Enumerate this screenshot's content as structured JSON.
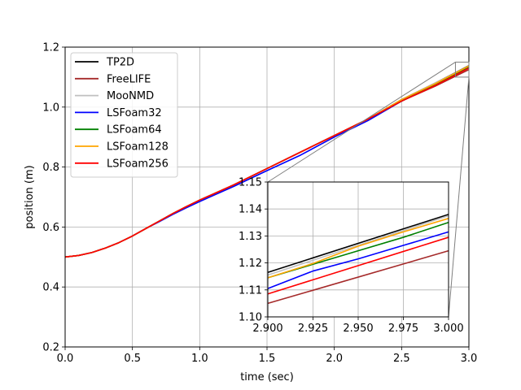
{
  "chart_data": [
    {
      "type": "line",
      "panel": "main",
      "xlabel": "time (sec)",
      "ylabel": "position (m)",
      "xlim": [
        0.0,
        3.0
      ],
      "ylim": [
        0.2,
        1.2
      ],
      "xticks": [
        0.0,
        0.5,
        1.0,
        1.5,
        2.0,
        2.5,
        3.0
      ],
      "xtick_labels": [
        "0.0",
        "0.5",
        "1.0",
        "1.5",
        "2.0",
        "2.5",
        "3.0"
      ],
      "yticks": [
        0.2,
        0.4,
        0.6,
        0.8,
        1.0,
        1.2
      ],
      "ytick_labels": [
        "0.2",
        "0.4",
        "0.6",
        "0.8",
        "1.0",
        "1.2"
      ],
      "grid": true,
      "legend_position": "upper-left",
      "series": [
        {
          "name": "TP2D",
          "color": "#000000",
          "x": [
            0.0,
            0.1,
            0.2,
            0.3,
            0.4,
            0.5,
            0.6,
            0.7,
            0.8,
            0.9,
            1.0,
            1.25,
            1.5,
            1.75,
            2.0,
            2.25,
            2.5,
            2.75,
            3.0
          ],
          "y": [
            0.5,
            0.505,
            0.515,
            0.53,
            0.548,
            0.57,
            0.595,
            0.62,
            0.645,
            0.668,
            0.69,
            0.74,
            0.795,
            0.85,
            0.905,
            0.96,
            1.025,
            1.08,
            1.138
          ]
        },
        {
          "name": "FreeLIFE",
          "color": "#a52a2a",
          "x": [
            0.0,
            0.1,
            0.2,
            0.3,
            0.4,
            0.5,
            0.6,
            0.7,
            0.8,
            0.9,
            1.0,
            1.25,
            1.5,
            1.75,
            2.0,
            2.25,
            2.5,
            2.75,
            3.0
          ],
          "y": [
            0.5,
            0.505,
            0.515,
            0.53,
            0.548,
            0.57,
            0.595,
            0.62,
            0.645,
            0.668,
            0.69,
            0.74,
            0.795,
            0.85,
            0.905,
            0.96,
            1.02,
            1.07,
            1.125
          ]
        },
        {
          "name": "MooNMD",
          "color": "#c0c0c0",
          "x": [
            0.0,
            0.1,
            0.2,
            0.3,
            0.4,
            0.5,
            0.6,
            0.7,
            0.8,
            0.9,
            1.0,
            1.25,
            1.5,
            1.75,
            2.0,
            2.25,
            2.5,
            2.75,
            3.0
          ],
          "y": [
            0.5,
            0.505,
            0.515,
            0.53,
            0.548,
            0.57,
            0.595,
            0.62,
            0.645,
            0.668,
            0.69,
            0.74,
            0.795,
            0.85,
            0.905,
            0.96,
            1.025,
            1.08,
            1.137
          ]
        },
        {
          "name": "LSFoam32",
          "color": "#0000ff",
          "x": [
            0.0,
            0.1,
            0.2,
            0.3,
            0.4,
            0.5,
            0.6,
            0.7,
            0.8,
            0.9,
            1.0,
            1.25,
            1.5,
            1.75,
            2.0,
            2.25,
            2.5,
            2.75,
            3.0
          ],
          "y": [
            0.5,
            0.505,
            0.515,
            0.53,
            0.548,
            0.57,
            0.595,
            0.618,
            0.642,
            0.664,
            0.685,
            0.735,
            0.788,
            0.84,
            0.9,
            0.955,
            1.02,
            1.075,
            1.131
          ]
        },
        {
          "name": "LSFoam64",
          "color": "#008000",
          "x": [
            0.0,
            0.1,
            0.2,
            0.3,
            0.4,
            0.5,
            0.6,
            0.7,
            0.8,
            0.9,
            1.0,
            1.25,
            1.5,
            1.75,
            2.0,
            2.25,
            2.5,
            2.75,
            3.0
          ],
          "y": [
            0.5,
            0.505,
            0.515,
            0.53,
            0.548,
            0.57,
            0.595,
            0.62,
            0.645,
            0.668,
            0.69,
            0.74,
            0.795,
            0.85,
            0.905,
            0.96,
            1.02,
            1.075,
            1.135
          ]
        },
        {
          "name": "LSFoam128",
          "color": "#ffa500",
          "x": [
            0.0,
            0.1,
            0.2,
            0.3,
            0.4,
            0.5,
            0.6,
            0.7,
            0.8,
            0.9,
            1.0,
            1.25,
            1.5,
            1.75,
            2.0,
            2.25,
            2.5,
            2.75,
            3.0
          ],
          "y": [
            0.5,
            0.505,
            0.515,
            0.53,
            0.548,
            0.57,
            0.595,
            0.62,
            0.645,
            0.668,
            0.69,
            0.74,
            0.795,
            0.85,
            0.905,
            0.96,
            1.025,
            1.078,
            1.137
          ]
        },
        {
          "name": "LSFoam256",
          "color": "#ff0000",
          "x": [
            0.0,
            0.1,
            0.2,
            0.3,
            0.4,
            0.5,
            0.6,
            0.7,
            0.8,
            0.9,
            1.0,
            1.25,
            1.5,
            1.75,
            2.0,
            2.25,
            2.5,
            2.75,
            3.0
          ],
          "y": [
            0.5,
            0.505,
            0.515,
            0.53,
            0.548,
            0.57,
            0.595,
            0.62,
            0.645,
            0.668,
            0.69,
            0.74,
            0.795,
            0.85,
            0.905,
            0.96,
            1.02,
            1.072,
            1.13
          ]
        }
      ]
    },
    {
      "type": "line",
      "panel": "inset",
      "xlim": [
        2.9,
        3.0
      ],
      "ylim": [
        1.1,
        1.15
      ],
      "xticks": [
        2.9,
        2.925,
        2.95,
        2.975,
        3.0
      ],
      "xtick_labels": [
        "2.900",
        "2.925",
        "2.950",
        "2.975",
        "3.000"
      ],
      "yticks": [
        1.1,
        1.11,
        1.12,
        1.13,
        1.14,
        1.15
      ],
      "ytick_labels": [
        "1.10",
        "1.11",
        "1.12",
        "1.13",
        "1.14",
        "1.15"
      ],
      "grid": true,
      "series": [
        {
          "name": "TP2D",
          "color": "#000000",
          "x": [
            2.9,
            3.0
          ],
          "y": [
            1.1165,
            1.138
          ]
        },
        {
          "name": "FreeLIFE",
          "color": "#a52a2a",
          "x": [
            2.9,
            3.0
          ],
          "y": [
            1.105,
            1.1245
          ]
        },
        {
          "name": "MooNMD",
          "color": "#c0c0c0",
          "x": [
            2.9,
            3.0
          ],
          "y": [
            1.1155,
            1.1375
          ]
        },
        {
          "name": "LSFoam32",
          "color": "#0000ff",
          "x": [
            2.9,
            2.925,
            2.95,
            2.975,
            3.0
          ],
          "y": [
            1.1105,
            1.117,
            1.1215,
            1.1265,
            1.1315
          ]
        },
        {
          "name": "LSFoam64",
          "color": "#008000",
          "x": [
            2.9,
            2.925,
            2.95,
            2.975,
            3.0
          ],
          "y": [
            1.1145,
            1.1195,
            1.1245,
            1.1295,
            1.135
          ]
        },
        {
          "name": "LSFoam128",
          "color": "#ffa500",
          "x": [
            2.9,
            2.925,
            2.95,
            2.975,
            3.0
          ],
          "y": [
            1.1145,
            1.1198,
            1.1262,
            1.1315,
            1.1365
          ]
        },
        {
          "name": "LSFoam256",
          "color": "#ff0000",
          "x": [
            2.9,
            3.0
          ],
          "y": [
            1.1085,
            1.1295
          ]
        }
      ]
    }
  ]
}
